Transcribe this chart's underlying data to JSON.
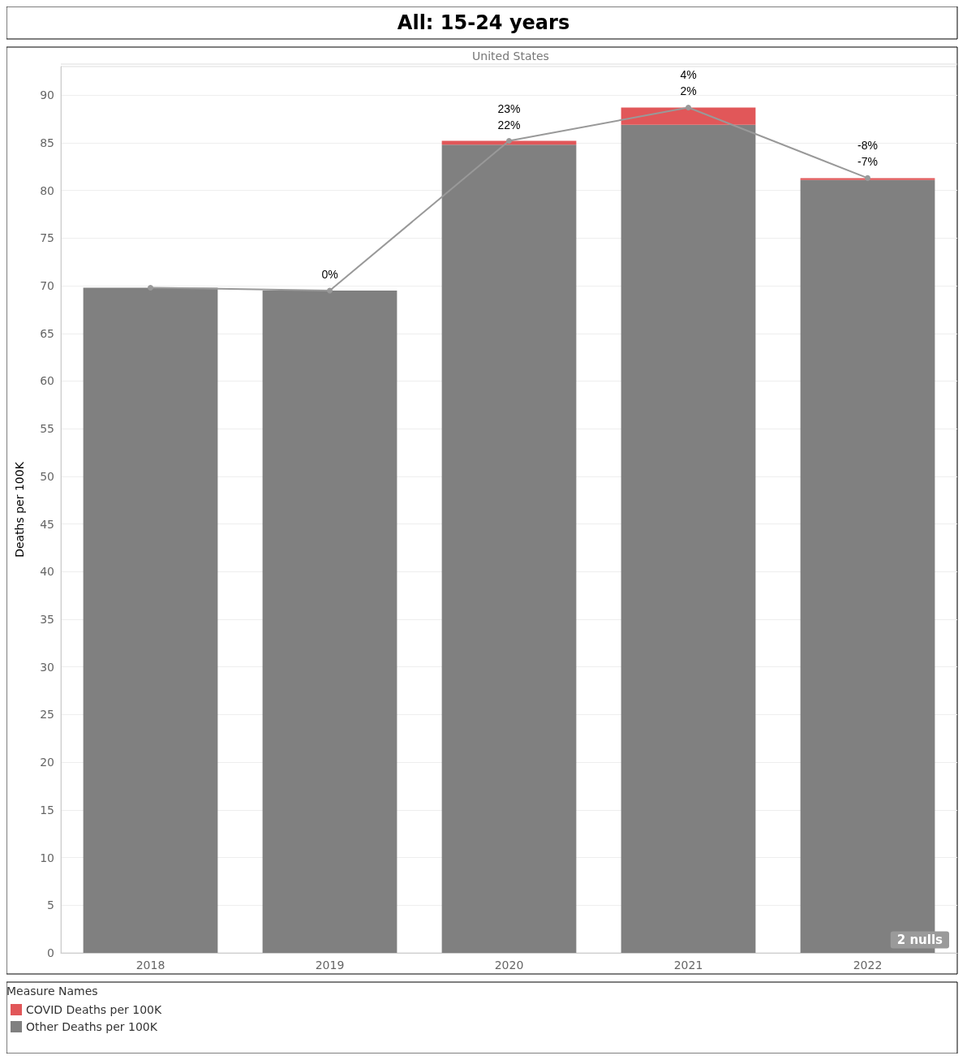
{
  "chart_data": {
    "type": "bar",
    "title": "All: 15-24 years",
    "subtitle": "United States",
    "ylabel": "Deaths per 100K",
    "legend_title": "Measure Names",
    "categories": [
      "2018",
      "2019",
      "2020",
      "2021",
      "2022"
    ],
    "stacked": true,
    "series": [
      {
        "name": "Other Deaths per 100K",
        "color": "#808080",
        "values": [
          69.8,
          69.5,
          84.8,
          86.9,
          81.1
        ]
      },
      {
        "name": "COVID Deaths per 100K",
        "color": "#e15759",
        "values": [
          null,
          null,
          0.4,
          1.8,
          0.2
        ]
      },
      {
        "type": "line",
        "color": "#999999",
        "values": [
          69.8,
          69.5,
          85.2,
          88.7,
          81.3
        ]
      }
    ],
    "ylim": [
      0,
      93
    ],
    "yticks": [
      0,
      5,
      10,
      15,
      20,
      25,
      30,
      35,
      40,
      45,
      50,
      55,
      60,
      65,
      70,
      75,
      80,
      85,
      90
    ],
    "grid": "y",
    "legend": "bottom",
    "marker": "circle",
    "annotations": [
      "2 nulls",
      {
        "text": "0%",
        "x": "2019",
        "y": 69.5
      },
      {
        "text": "23%\n22%",
        "x": "2020",
        "y": 85.2
      },
      {
        "text": "4%\n2%",
        "x": "2021",
        "y": 88.7
      },
      {
        "text": "-8%\n-7%",
        "x": "2022",
        "y": 81.3
      }
    ]
  }
}
